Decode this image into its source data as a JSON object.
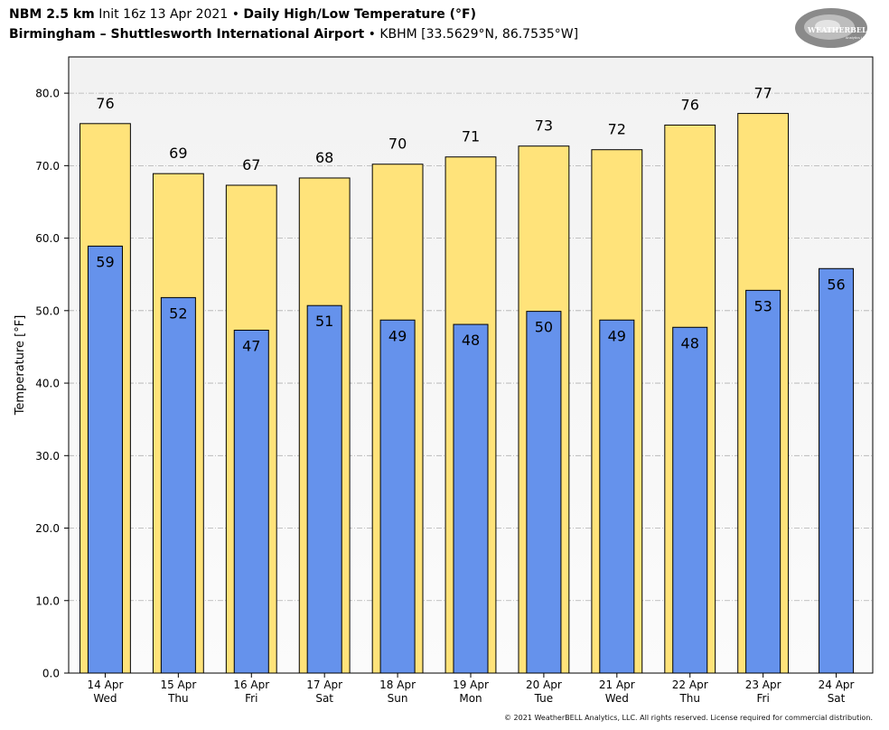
{
  "header": {
    "line1_model": "NBM 2.5 km",
    "line1_init": "Init 16z 13 Apr 2021",
    "line1_title": "Daily High/Low Temperature (°F)",
    "line2_location": "Birmingham – Shuttlesworth International Airport",
    "line2_station": "KBHM [33.5629°N, 86.7535°W]",
    "bullet": "•"
  },
  "logo": {
    "icon": "weatherbell-swirl-logo",
    "text": "WEATHERBELL",
    "subtext": "Analytics LLC"
  },
  "footer": {
    "copyright": "© 2021 WeatherBELL Analytics, LLC. All rights reserved. License required for commercial distribution."
  },
  "colors": {
    "high": "#FFE37A",
    "low": "#6592EC",
    "plot_bg_top": "#F3F3F3",
    "plot_bg_bottom": "#FAFAFA",
    "grid": "#B0B0B0"
  },
  "chart_data": {
    "type": "bar",
    "ylabel": "Temperature [°F]",
    "ylim": [
      0,
      85
    ],
    "yticks": [
      0,
      10,
      20,
      30,
      40,
      50,
      60,
      70,
      80
    ],
    "ytick_labels": [
      "0.0",
      "10.0",
      "20.0",
      "30.0",
      "40.0",
      "50.0",
      "60.0",
      "70.0",
      "80.0"
    ],
    "grid": "horizontal dash-dot",
    "categories": [
      {
        "date": "14 Apr",
        "day": "Wed"
      },
      {
        "date": "15 Apr",
        "day": "Thu"
      },
      {
        "date": "16 Apr",
        "day": "Fri"
      },
      {
        "date": "17 Apr",
        "day": "Sat"
      },
      {
        "date": "18 Apr",
        "day": "Sun"
      },
      {
        "date": "19 Apr",
        "day": "Mon"
      },
      {
        "date": "20 Apr",
        "day": "Tue"
      },
      {
        "date": "21 Apr",
        "day": "Wed"
      },
      {
        "date": "22 Apr",
        "day": "Thu"
      },
      {
        "date": "23 Apr",
        "day": "Fri"
      },
      {
        "date": "24 Apr",
        "day": "Sat"
      }
    ],
    "series": [
      {
        "key": "high",
        "values": [
          75.8,
          68.9,
          67.3,
          68.3,
          70.2,
          71.2,
          72.7,
          72.2,
          75.6,
          77.2,
          null
        ],
        "labels": [
          "76",
          "69",
          "67",
          "68",
          "70",
          "71",
          "73",
          "72",
          "76",
          "77",
          ""
        ]
      },
      {
        "key": "low",
        "values": [
          58.9,
          51.8,
          47.3,
          50.7,
          48.7,
          48.1,
          49.9,
          48.7,
          47.7,
          52.8,
          55.8
        ],
        "labels": [
          "59",
          "52",
          "47",
          "51",
          "49",
          "48",
          "50",
          "49",
          "48",
          "53",
          "56"
        ]
      }
    ]
  }
}
